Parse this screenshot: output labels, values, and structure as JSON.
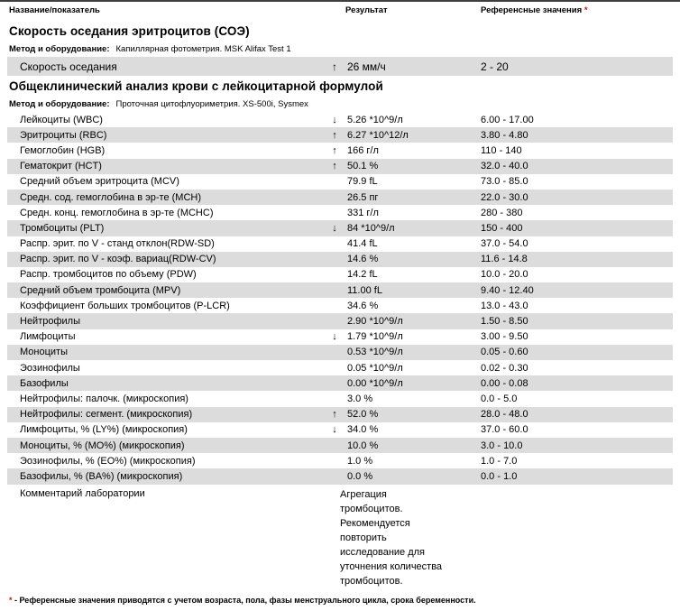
{
  "colors": {
    "row_shade": "#dcdcdc",
    "asterisk": "#c01818",
    "text": "#000000"
  },
  "header": {
    "col_name": "Название/показатель",
    "col_result": "Результат",
    "col_ref": "Референсные значения",
    "col_ref_mark": "*"
  },
  "sections": [
    {
      "title": "Скорость оседания эритроцитов (СОЭ)",
      "method_label": "Метод и оборудование:",
      "method_value": "Капиллярная фотометрия. MSK Alifax Test 1",
      "rows": [
        {
          "name": "Скорость оседания",
          "arrow": "↑",
          "result": "26 мм/ч",
          "ref": "2 - 20",
          "shaded": true
        }
      ]
    },
    {
      "title": "Общеклинический анализ крови с лейкоцитарной формулой",
      "method_label": "Метод и оборудование:",
      "method_value": "Проточная цитофлуориметрия. XS-500i, Sysmex",
      "rows": [
        {
          "name": "Лейкоциты (WBC)",
          "arrow": "↓",
          "result": "5.26 *10^9/л",
          "ref": "6.00 - 17.00",
          "shaded": false
        },
        {
          "name": "Эритроциты (RBC)",
          "arrow": "↑",
          "result": "6.27 *10^12/л",
          "ref": "3.80 - 4.80",
          "shaded": true
        },
        {
          "name": "Гемоглобин (HGB)",
          "arrow": "↑",
          "result": "166 г/л",
          "ref": "110 - 140",
          "shaded": false
        },
        {
          "name": "Гематокрит (HCT)",
          "arrow": "↑",
          "result": "50.1 %",
          "ref": "32.0 - 40.0",
          "shaded": true
        },
        {
          "name": "Средний объем эритроцита (MCV)",
          "arrow": "",
          "result": "79.9 fL",
          "ref": "73.0 - 85.0",
          "shaded": false
        },
        {
          "name": "Средн. сод. гемоглобина в эр-те (MCH)",
          "arrow": "",
          "result": "26.5 пг",
          "ref": "22.0 - 30.0",
          "shaded": true
        },
        {
          "name": "Средн. конц. гемоглобина в эр-те (MCHC)",
          "arrow": "",
          "result": "331 г/л",
          "ref": "280 - 380",
          "shaded": false
        },
        {
          "name": "Тромбоциты (PLT)",
          "arrow": "↓",
          "result": "84 *10^9/л",
          "ref": "150 - 400",
          "shaded": true
        },
        {
          "name": "Распр. эрит. по V - станд отклон(RDW-SD)",
          "arrow": "",
          "result": "41.4 fL",
          "ref": "37.0 - 54.0",
          "shaded": false
        },
        {
          "name": "Распр. эрит. по V - коэф. вариац(RDW-CV)",
          "arrow": "",
          "result": "14.6 %",
          "ref": "11.6 - 14.8",
          "shaded": true
        },
        {
          "name": "Распр. тромбоцитов по объему (PDW)",
          "arrow": "",
          "result": "14.2 fL",
          "ref": "10.0 - 20.0",
          "shaded": false
        },
        {
          "name": "Средний объем тромбоцита (MPV)",
          "arrow": "",
          "result": "11.00 fL",
          "ref": "9.40 - 12.40",
          "shaded": true
        },
        {
          "name": "Коэффициент больших тромбоцитов (P-LCR)",
          "arrow": "",
          "result": "34.6 %",
          "ref": "13.0 - 43.0",
          "shaded": false
        },
        {
          "name": "Нейтрофилы",
          "arrow": "",
          "result": "2.90 *10^9/л",
          "ref": "1.50 - 8.50",
          "shaded": true
        },
        {
          "name": "Лимфоциты",
          "arrow": "↓",
          "result": "1.79 *10^9/л",
          "ref": "3.00 - 9.50",
          "shaded": false
        },
        {
          "name": "Моноциты",
          "arrow": "",
          "result": "0.53 *10^9/л",
          "ref": "0.05 - 0.60",
          "shaded": true
        },
        {
          "name": "Эозинофилы",
          "arrow": "",
          "result": "0.05 *10^9/л",
          "ref": "0.02 - 0.30",
          "shaded": false
        },
        {
          "name": "Базофилы",
          "arrow": "",
          "result": "0.00 *10^9/л",
          "ref": "0.00 - 0.08",
          "shaded": true
        },
        {
          "name": "Нейтрофилы: палочк. (микроскопия)",
          "arrow": "",
          "result": "3.0 %",
          "ref": "0.0 - 5.0",
          "shaded": false
        },
        {
          "name": "Нейтрофилы: сегмент. (микроскопия)",
          "arrow": "↑",
          "result": "52.0 %",
          "ref": "28.0 - 48.0",
          "shaded": true
        },
        {
          "name": "Лимфоциты, % (LY%) (микроскопия)",
          "arrow": "↓",
          "result": "34.0 %",
          "ref": "37.0 - 60.0",
          "shaded": false
        },
        {
          "name": "Моноциты, % (MO%) (микроскопия)",
          "arrow": "",
          "result": "10.0 %",
          "ref": "3.0 - 10.0",
          "shaded": true
        },
        {
          "name": "Эозинофилы, % (EO%) (микроскопия)",
          "arrow": "",
          "result": "1.0 %",
          "ref": "1.0 - 7.0",
          "shaded": false
        },
        {
          "name": "Базофилы, % (BA%) (микроскопия)",
          "arrow": "",
          "result": "0.0 %",
          "ref": "0.0 - 1.0",
          "shaded": true
        }
      ]
    }
  ],
  "comment": {
    "name": "Комментарий лаборатории",
    "lines": [
      "Агрегация",
      "тромбоцитов.",
      "Рекомендуется",
      "повторить",
      "исследование для",
      "уточнения количества",
      "тромбоцитов."
    ]
  },
  "footnote": {
    "mark": "*",
    "text": "- Референсные значения приводятся с учетом возраста, пола, фазы менструального цикла, срока беременности."
  }
}
